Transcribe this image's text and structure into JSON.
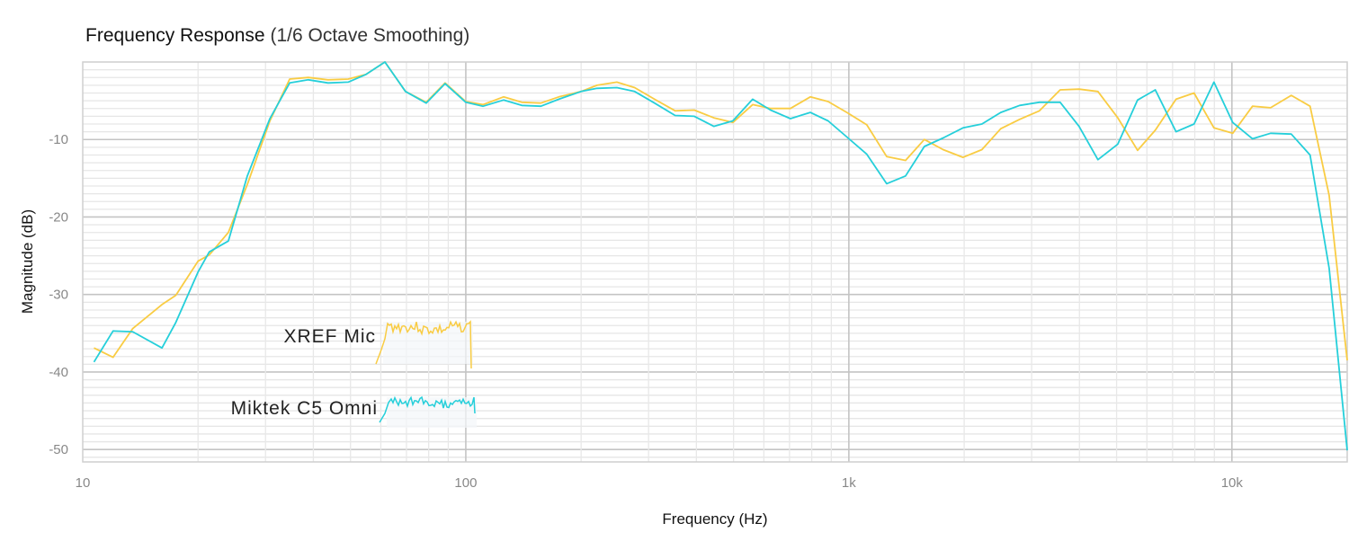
{
  "chart_data": {
    "type": "line",
    "title": "Frequency Response",
    "subtitle": "(1/6 Octave Smoothing)",
    "xlabel": "Frequency (Hz)",
    "ylabel": "Magnitude (dB)",
    "xscale": "log",
    "xlim": [
      10,
      20000
    ],
    "ylim": [
      -51.6,
      0
    ],
    "xticks": [
      {
        "value": 10,
        "label": "10"
      },
      {
        "value": 100,
        "label": "100"
      },
      {
        "value": 1000,
        "label": "1k"
      },
      {
        "value": 10000,
        "label": "10k"
      }
    ],
    "yticks": [
      {
        "value": -10,
        "label": "-10"
      },
      {
        "value": -20,
        "label": "-20"
      },
      {
        "value": -30,
        "label": "-30"
      },
      {
        "value": -40,
        "label": "-40"
      },
      {
        "value": -50,
        "label": "-50"
      }
    ],
    "grid": true,
    "legend_placement": "bottom-left (inline labels with sample traces)",
    "x": [
      10.7,
      12.0,
      13.5,
      16.1,
      17.5,
      20.0,
      21.4,
      24.0,
      26.9,
      30.8,
      34.7,
      38.8,
      43.7,
      49.3,
      54.9,
      61.5,
      69.6,
      78.8,
      88.3,
      100,
      111,
      125.5,
      140,
      157,
      175,
      200,
      220,
      248,
      276,
      311,
      352,
      395,
      444,
      498,
      561,
      625,
      704,
      793,
      883,
      995,
      1114,
      1255,
      1406,
      1574,
      1763,
      1986,
      2225,
      2493,
      2793,
      3145,
      3562,
      3990,
      4470,
      5035,
      5672,
      6310,
      7148,
      7965,
      8974,
      10050,
      11320,
      12620,
      14290,
      16000,
      17940,
      20000
    ],
    "series": [
      {
        "name": "XREF Mic",
        "color": "#F9CC43",
        "values": [
          -36.9,
          -38.1,
          -34.4,
          -31.3,
          -30.1,
          -25.7,
          -24.9,
          -22.0,
          -15.8,
          -7.6,
          -2.2,
          -2.0,
          -2.3,
          -2.2,
          -1.6,
          0,
          -3.8,
          -5.2,
          -2.7,
          -5.1,
          -5.5,
          -4.5,
          -5.2,
          -5.3,
          -4.5,
          -3.8,
          -3.0,
          -2.6,
          -3.3,
          -4.8,
          -6.3,
          -6.2,
          -7.2,
          -7.8,
          -5.5,
          -6.0,
          -6.0,
          -4.5,
          -5.1,
          -6.6,
          -8.1,
          -12.2,
          -12.7,
          -10.0,
          -11.3,
          -12.3,
          -11.3,
          -8.6,
          -7.4,
          -6.3,
          -3.6,
          -3.5,
          -3.8,
          -7.2,
          -11.4,
          -8.8,
          -4.8,
          -4.0,
          -8.5,
          -9.2,
          -5.7,
          -5.9,
          -4.3,
          -5.7,
          -17.2,
          -38.5
        ]
      },
      {
        "name": "Miktek C5 Omni",
        "color": "#25CFDA",
        "values": [
          -38.7,
          -34.7,
          -34.8,
          -36.9,
          -33.6,
          -27.1,
          -24.5,
          -23.1,
          -14.7,
          -7.3,
          -2.7,
          -2.3,
          -2.7,
          -2.6,
          -1.6,
          0,
          -3.8,
          -5.3,
          -2.8,
          -5.2,
          -5.7,
          -4.9,
          -5.6,
          -5.7,
          -4.8,
          -3.8,
          -3.4,
          -3.3,
          -3.8,
          -5.3,
          -6.9,
          -7.0,
          -8.3,
          -7.6,
          -4.8,
          -6.2,
          -7.3,
          -6.5,
          -7.6,
          -9.8,
          -11.9,
          -15.7,
          -14.7,
          -10.9,
          -9.8,
          -8.5,
          -8.0,
          -6.5,
          -5.6,
          -5.2,
          -5.2,
          -8.3,
          -12.6,
          -10.6,
          -4.9,
          -3.6,
          -9.0,
          -8.0,
          -2.6,
          -7.8,
          -9.9,
          -9.2,
          -9.3,
          -12.0,
          -26.6,
          -50.1
        ]
      }
    ]
  }
}
